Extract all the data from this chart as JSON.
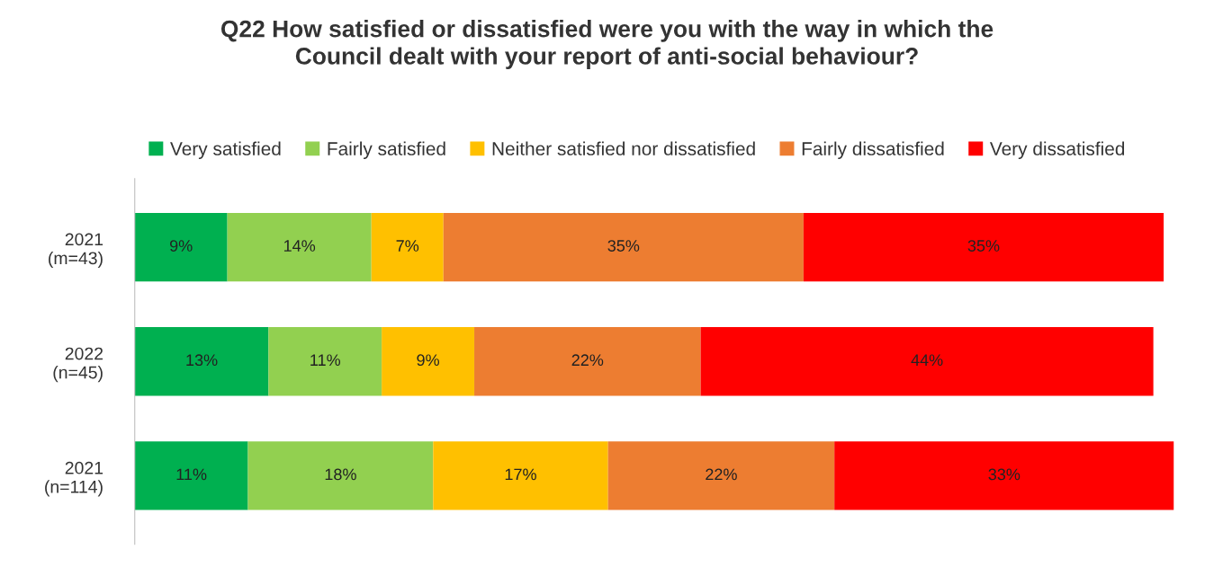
{
  "chart_data": {
    "type": "bar",
    "orientation": "horizontal",
    "stacked": true,
    "title": "Q22 How satisfied or dissatisfied were you with the way in which the\nCouncil dealt with your report of anti-social behaviour?",
    "categories": [
      "2021\n(m=43)",
      "2022\n(n=45)",
      "2021\n(n=114)"
    ],
    "series": [
      {
        "name": "Very satisfied",
        "color": "#00b050",
        "values": [
          9,
          13,
          11
        ],
        "value_labels": [
          "9%",
          "13%",
          "11%"
        ]
      },
      {
        "name": "Fairly satisfied",
        "color": "#92d050",
        "values": [
          14,
          11,
          18
        ],
        "value_labels": [
          "14%",
          "11%",
          "18%"
        ]
      },
      {
        "name": "Neither satisfied nor dissatisfied",
        "color": "#ffc000",
        "values": [
          7,
          9,
          17
        ],
        "value_labels": [
          "7%",
          "9%",
          "17%"
        ]
      },
      {
        "name": "Fairly dissatisfied",
        "color": "#ed7d31",
        "values": [
          35,
          22,
          22
        ],
        "value_labels": [
          "35%",
          "22%",
          "22%"
        ]
      },
      {
        "name": "Very dissatisfied",
        "color": "#ff0000",
        "values": [
          35,
          44,
          33
        ],
        "value_labels": [
          "35%",
          "44%",
          "33%"
        ]
      }
    ],
    "legend": "top",
    "grid": false
  }
}
